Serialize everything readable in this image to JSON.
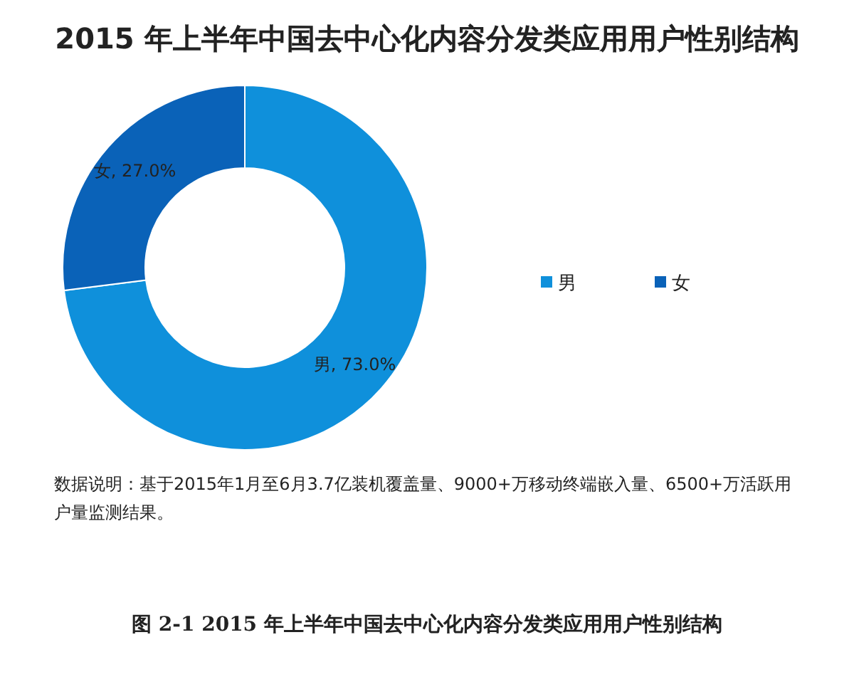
{
  "chart_data": {
    "type": "donut",
    "title": "2015 年上半年中国去中心化内容分发类应用用户性别结构",
    "categories": [
      "男",
      "女"
    ],
    "values": [
      73.0,
      27.0
    ],
    "colors": [
      "#0f90db",
      "#0a62b8"
    ],
    "value_labels": [
      "男, 73.0%",
      "女, 27.0%"
    ],
    "legend": "right",
    "annotations": [
      "数据说明：基于2015年1月至6月3.7亿装机覆盖量、9000+万移动终端嵌入量、6500+万活跃用户量监测结果。",
      "图 2-1 2015 年上半年中国去中心化内容分发类应用用户性别结构"
    ]
  }
}
